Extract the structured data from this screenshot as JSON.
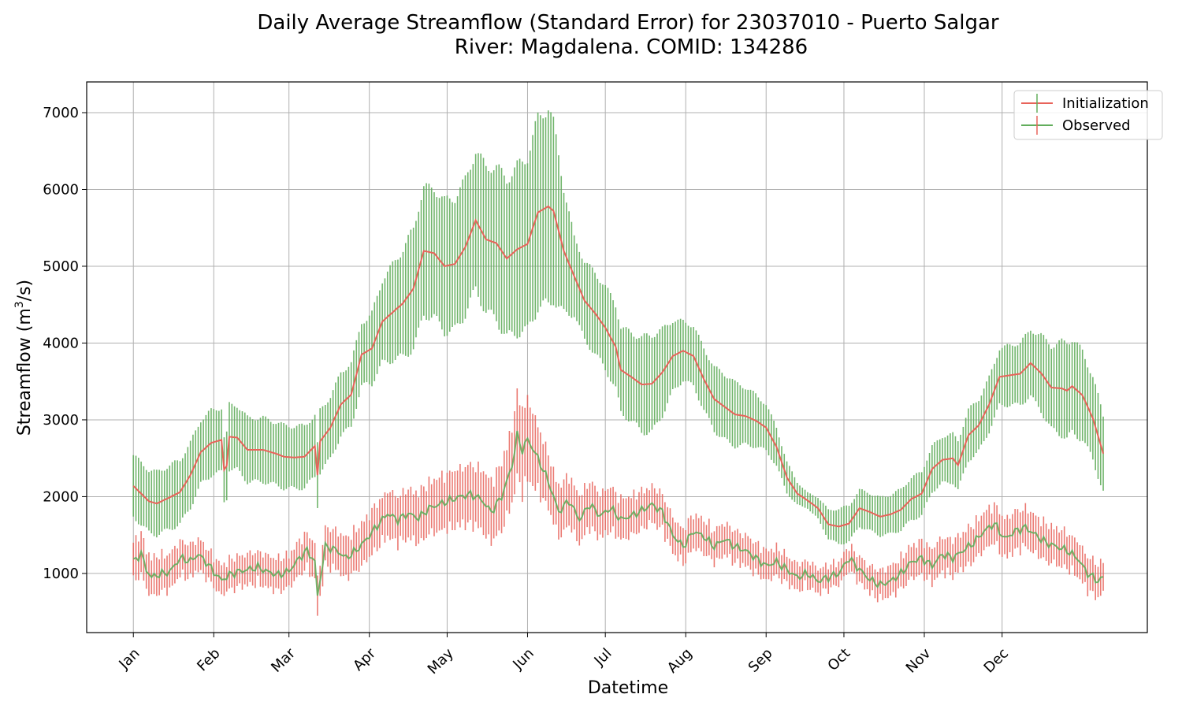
{
  "chart_data": {
    "type": "line",
    "title_line1": "Daily Average Streamflow (Standard Error) for 23037010 - Puerto Salgar",
    "title_line2": "River: Magdalena. COMID: 134286",
    "xlabel": "Datetime",
    "ylabel_main": "Streamflow (m",
    "ylabel_sup": "3",
    "ylabel_end": "/s)",
    "ylim": [
      230,
      7400
    ],
    "xlim": [
      -18,
      391
    ],
    "yticks": [
      1000,
      2000,
      3000,
      4000,
      5000,
      6000,
      7000
    ],
    "xticks": [
      {
        "label": "Jan",
        "day": 0
      },
      {
        "label": "Feb",
        "day": 31
      },
      {
        "label": "Mar",
        "day": 60
      },
      {
        "label": "Apr",
        "day": 91
      },
      {
        "label": "May",
        "day": 121
      },
      {
        "label": "Jun",
        "day": 152
      },
      {
        "label": "Jul",
        "day": 182
      },
      {
        "label": "Aug",
        "day": 213
      },
      {
        "label": "Sep",
        "day": 244
      },
      {
        "label": "Oct",
        "day": 274
      },
      {
        "label": "Nov",
        "day": 305
      },
      {
        "label": "Dec",
        "day": 335
      }
    ],
    "grid": true,
    "legend_position": "top-right",
    "series": [
      {
        "name": "Initialization",
        "color": "#e8635a",
        "keypoints": [
          [
            0,
            2140
          ],
          [
            3,
            2040
          ],
          [
            6,
            1940
          ],
          [
            9,
            1910
          ],
          [
            14,
            1990
          ],
          [
            18,
            2060
          ],
          [
            22,
            2280
          ],
          [
            26,
            2580
          ],
          [
            30,
            2700
          ],
          [
            34,
            2740
          ],
          [
            35,
            2350
          ],
          [
            36,
            2400
          ],
          [
            37,
            2780
          ],
          [
            40,
            2770
          ],
          [
            44,
            2610
          ],
          [
            50,
            2610
          ],
          [
            55,
            2560
          ],
          [
            58,
            2520
          ],
          [
            62,
            2510
          ],
          [
            66,
            2520
          ],
          [
            70,
            2660
          ],
          [
            71,
            2280
          ],
          [
            72,
            2720
          ],
          [
            76,
            2900
          ],
          [
            80,
            3200
          ],
          [
            84,
            3330
          ],
          [
            88,
            3850
          ],
          [
            92,
            3930
          ],
          [
            96,
            4280
          ],
          [
            100,
            4400
          ],
          [
            104,
            4520
          ],
          [
            108,
            4710
          ],
          [
            112,
            5200
          ],
          [
            116,
            5170
          ],
          [
            120,
            5000
          ],
          [
            124,
            5030
          ],
          [
            128,
            5250
          ],
          [
            132,
            5600
          ],
          [
            136,
            5350
          ],
          [
            140,
            5300
          ],
          [
            144,
            5100
          ],
          [
            148,
            5220
          ],
          [
            152,
            5290
          ],
          [
            156,
            5700
          ],
          [
            160,
            5780
          ],
          [
            162,
            5720
          ],
          [
            166,
            5200
          ],
          [
            170,
            4870
          ],
          [
            174,
            4550
          ],
          [
            178,
            4390
          ],
          [
            182,
            4200
          ],
          [
            186,
            3950
          ],
          [
            188,
            3650
          ],
          [
            192,
            3560
          ],
          [
            196,
            3460
          ],
          [
            200,
            3470
          ],
          [
            204,
            3620
          ],
          [
            208,
            3830
          ],
          [
            212,
            3900
          ],
          [
            216,
            3830
          ],
          [
            220,
            3530
          ],
          [
            224,
            3270
          ],
          [
            228,
            3170
          ],
          [
            232,
            3070
          ],
          [
            236,
            3050
          ],
          [
            240,
            2990
          ],
          [
            244,
            2900
          ],
          [
            248,
            2650
          ],
          [
            252,
            2250
          ],
          [
            256,
            2040
          ],
          [
            260,
            1950
          ],
          [
            264,
            1850
          ],
          [
            268,
            1640
          ],
          [
            272,
            1610
          ],
          [
            276,
            1650
          ],
          [
            280,
            1850
          ],
          [
            284,
            1800
          ],
          [
            288,
            1740
          ],
          [
            292,
            1770
          ],
          [
            296,
            1830
          ],
          [
            300,
            1970
          ],
          [
            304,
            2040
          ],
          [
            308,
            2360
          ],
          [
            312,
            2480
          ],
          [
            316,
            2500
          ],
          [
            318,
            2410
          ],
          [
            322,
            2800
          ],
          [
            326,
            2930
          ],
          [
            330,
            3200
          ],
          [
            334,
            3560
          ],
          [
            338,
            3580
          ],
          [
            342,
            3600
          ],
          [
            346,
            3740
          ],
          [
            350,
            3610
          ],
          [
            354,
            3420
          ],
          [
            358,
            3410
          ],
          [
            360,
            3380
          ],
          [
            362,
            3440
          ],
          [
            366,
            3320
          ],
          [
            370,
            3020
          ],
          [
            374,
            2560
          ]
        ],
        "error": [
          [
            0,
            400
          ],
          [
            20,
            420
          ],
          [
            40,
            420
          ],
          [
            70,
            400
          ],
          [
            90,
            420
          ],
          [
            110,
            820
          ],
          [
            130,
            880
          ],
          [
            150,
            1100
          ],
          [
            160,
            1300
          ],
          [
            170,
            500
          ],
          [
            190,
            560
          ],
          [
            200,
            640
          ],
          [
            212,
            380
          ],
          [
            230,
            430
          ],
          [
            244,
            300
          ],
          [
            260,
            100
          ],
          [
            272,
            230
          ],
          [
            290,
            250
          ],
          [
            310,
            300
          ],
          [
            330,
            350
          ],
          [
            345,
            420
          ],
          [
            360,
            630
          ],
          [
            374,
            500
          ]
        ]
      },
      {
        "name": "Observed",
        "color": "#62ad5c",
        "keypoints": [
          [
            0,
            1150
          ],
          [
            3,
            1260
          ],
          [
            5,
            1050
          ],
          [
            7,
            950
          ],
          [
            10,
            990
          ],
          [
            14,
            1020
          ],
          [
            18,
            1200
          ],
          [
            22,
            1160
          ],
          [
            25,
            1250
          ],
          [
            28,
            1150
          ],
          [
            31,
            1020
          ],
          [
            34,
            910
          ],
          [
            37,
            980
          ],
          [
            40,
            1020
          ],
          [
            44,
            1050
          ],
          [
            48,
            1080
          ],
          [
            52,
            1020
          ],
          [
            56,
            980
          ],
          [
            60,
            1030
          ],
          [
            64,
            1200
          ],
          [
            67,
            1300
          ],
          [
            70,
            1150
          ],
          [
            71,
            700
          ],
          [
            74,
            1350
          ],
          [
            78,
            1310
          ],
          [
            82,
            1200
          ],
          [
            86,
            1300
          ],
          [
            90,
            1450
          ],
          [
            94,
            1620
          ],
          [
            98,
            1780
          ],
          [
            102,
            1700
          ],
          [
            106,
            1780
          ],
          [
            110,
            1720
          ],
          [
            114,
            1850
          ],
          [
            118,
            1900
          ],
          [
            122,
            1950
          ],
          [
            126,
            2000
          ],
          [
            130,
            2030
          ],
          [
            134,
            1970
          ],
          [
            138,
            1800
          ],
          [
            142,
            2000
          ],
          [
            146,
            2400
          ],
          [
            148,
            2800
          ],
          [
            150,
            2600
          ],
          [
            152,
            2750
          ],
          [
            156,
            2500
          ],
          [
            160,
            2200
          ],
          [
            164,
            1800
          ],
          [
            168,
            1950
          ],
          [
            172,
            1700
          ],
          [
            176,
            1900
          ],
          [
            180,
            1750
          ],
          [
            184,
            1850
          ],
          [
            188,
            1700
          ],
          [
            192,
            1750
          ],
          [
            196,
            1820
          ],
          [
            200,
            1900
          ],
          [
            204,
            1800
          ],
          [
            208,
            1500
          ],
          [
            212,
            1350
          ],
          [
            216,
            1550
          ],
          [
            220,
            1480
          ],
          [
            224,
            1350
          ],
          [
            228,
            1450
          ],
          [
            232,
            1350
          ],
          [
            236,
            1300
          ],
          [
            240,
            1200
          ],
          [
            244,
            1100
          ],
          [
            248,
            1150
          ],
          [
            252,
            1050
          ],
          [
            256,
            950
          ],
          [
            260,
            1000
          ],
          [
            264,
            900
          ],
          [
            268,
            950
          ],
          [
            272,
            1000
          ],
          [
            276,
            1200
          ],
          [
            280,
            1050
          ],
          [
            284,
            920
          ],
          [
            288,
            850
          ],
          [
            292,
            900
          ],
          [
            296,
            1000
          ],
          [
            300,
            1150
          ],
          [
            304,
            1200
          ],
          [
            308,
            1100
          ],
          [
            312,
            1250
          ],
          [
            316,
            1200
          ],
          [
            320,
            1300
          ],
          [
            324,
            1400
          ],
          [
            328,
            1550
          ],
          [
            332,
            1650
          ],
          [
            336,
            1450
          ],
          [
            340,
            1550
          ],
          [
            344,
            1600
          ],
          [
            348,
            1500
          ],
          [
            352,
            1400
          ],
          [
            356,
            1350
          ],
          [
            360,
            1300
          ],
          [
            364,
            1200
          ],
          [
            368,
            1000
          ],
          [
            372,
            900
          ],
          [
            374,
            950
          ]
        ],
        "error": [
          [
            0,
            250
          ],
          [
            30,
            180
          ],
          [
            60,
            200
          ],
          [
            100,
            280
          ],
          [
            140,
            380
          ],
          [
            150,
            520
          ],
          [
            160,
            320
          ],
          [
            200,
            220
          ],
          [
            244,
            180
          ],
          [
            272,
            140
          ],
          [
            300,
            200
          ],
          [
            340,
            240
          ],
          [
            374,
            200
          ]
        ]
      }
    ]
  }
}
